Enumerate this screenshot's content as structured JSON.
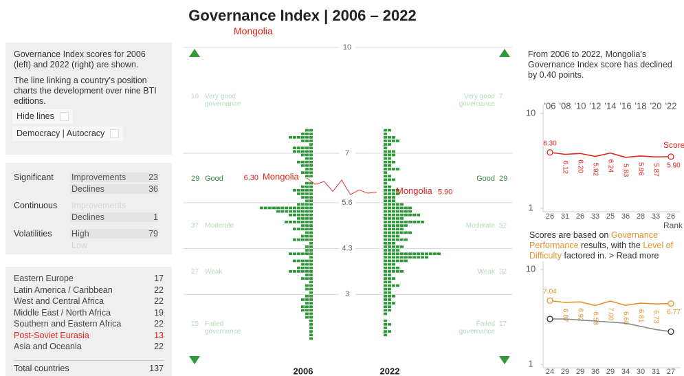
{
  "header": {
    "title": "Governance Index | 2006 – 2022",
    "subtitle": "Mongolia"
  },
  "info_panel": {
    "text1": "Governance Index scores for 2006 (left) and 2022 (right) are shown.",
    "text2": "The line linking a country’s position charts the development over nine BTI editions.",
    "buttons": [
      "Hide lines",
      "Democracy | Autocracy"
    ]
  },
  "trends_panel": [
    {
      "label": "Significant",
      "rows": [
        {
          "name": "Improvements",
          "value": 23
        },
        {
          "name": "Declines",
          "value": 36
        }
      ]
    },
    {
      "label": "Continuous",
      "rows": [
        {
          "name": "Improvements"
        },
        {
          "name": "Declines",
          "value": 1
        }
      ]
    },
    {
      "label": "Volatilities",
      "rows": [
        {
          "name": "High",
          "value": 79
        },
        {
          "name": "Low"
        }
      ]
    }
  ],
  "regions_panel": {
    "regions": [
      {
        "name": "Eastern Europe",
        "count": 17
      },
      {
        "name": "Latin America / Caribbean",
        "count": 22
      },
      {
        "name": "West and Central Africa",
        "count": 22
      },
      {
        "name": "Middle East / North Africa",
        "count": 19
      },
      {
        "name": "Southern and Eastern Africa",
        "count": 22
      },
      {
        "name": "Post-Soviet Eurasia",
        "count": 13
      },
      {
        "name": "Asia and Oceania",
        "count": 22
      }
    ],
    "total": {
      "name": "Total countries",
      "count": 137
    }
  },
  "center": {
    "ylim": [
      1,
      10
    ],
    "yticks": [
      10,
      7,
      5.6,
      4.3,
      3
    ],
    "color": "#2f9a3a",
    "bins": [
      7.7,
      7.6,
      7.5,
      7.4,
      7.3,
      7.2,
      7.1,
      7.0,
      6.9,
      6.8,
      6.7,
      6.6,
      6.5,
      6.4,
      6.3,
      6.2,
      6.1,
      6.0,
      5.9,
      5.8,
      5.7,
      5.6,
      5.5,
      5.4,
      5.3,
      5.2,
      5.1,
      5.0,
      4.9,
      4.8,
      4.7,
      4.6,
      4.5,
      4.4,
      4.3,
      4.2,
      4.1,
      4.0,
      3.9,
      3.8,
      3.7,
      3.6,
      3.5,
      3.4,
      3.3,
      3.2,
      3.1,
      3.0,
      2.9,
      2.8,
      2.7,
      2.6,
      2.5,
      2.4,
      2.3,
      2.2,
      2.1,
      2.0,
      1.9,
      1.8,
      1.7,
      1.6,
      1.5,
      1.4,
      1.3,
      1.2
    ],
    "hist_2006": {
      "year": "2006",
      "counts": [
        2,
        3,
        6,
        3,
        1,
        5,
        5,
        3,
        2,
        4,
        3,
        2,
        3,
        2,
        0,
        2,
        3,
        5,
        4,
        3,
        2,
        4,
        13,
        9,
        6,
        4,
        7,
        3,
        5,
        2,
        3,
        5,
        1,
        2,
        2,
        6,
        1,
        5,
        3,
        4,
        6,
        2,
        3,
        1,
        2,
        2,
        1,
        2,
        3,
        2,
        3,
        3,
        2,
        2,
        1,
        1,
        1,
        1,
        1,
        1,
        0,
        0,
        0,
        0,
        0
      ]
    },
    "hist_2022": {
      "year": "2022",
      "counts": [
        2,
        1,
        3,
        4,
        2,
        1,
        3,
        3,
        2,
        3,
        2,
        4,
        1,
        2,
        3,
        1,
        2,
        4,
        4,
        3,
        3,
        5,
        7,
        7,
        9,
        5,
        10,
        6,
        5,
        7,
        4,
        6,
        3,
        5,
        4,
        14,
        11,
        6,
        3,
        4,
        5,
        2,
        3,
        2,
        4,
        2,
        2,
        3,
        2,
        3,
        2,
        2,
        1,
        0,
        1,
        2,
        1,
        2,
        1,
        0,
        0,
        0,
        0,
        0,
        0
      ]
    },
    "categories": [
      {
        "name": "Very good governance",
        "count_2006": 10,
        "count_2022": 7
      },
      {
        "name": "Good",
        "count_2006": 29,
        "count_2022": 29
      },
      {
        "name": "Moderate",
        "count_2006": 37,
        "count_2022": 52
      },
      {
        "name": "Weak",
        "count_2006": 27,
        "count_2022": 32
      },
      {
        "name": "Failed governance",
        "count_2006": 15,
        "count_2022": 17
      }
    ],
    "country": {
      "name": "Mongolia",
      "color": "#e3221c"
    }
  },
  "right_panel": {
    "summary": "From 2006 to 2022, Mongolia’s Governance Index score has declined by 0.40 points.",
    "chart_score": {
      "type": "line",
      "years": [
        "'06",
        "'08",
        "'10",
        "'12",
        "'14",
        "'16",
        "'18",
        "'20",
        "'22"
      ],
      "ylim": [
        1,
        10
      ],
      "yticks": [
        10,
        1
      ],
      "series": [
        {
          "name": "Score",
          "color": "#e3221c",
          "values": [
            6.3,
            6.12,
            6.2,
            5.92,
            6.24,
            5.83,
            5.96,
            5.87,
            5.9
          ],
          "value_labels": [
            "6.30",
            "6.12",
            "6.20",
            "5.92",
            "6.24",
            "5.83",
            "5.96",
            "5.87",
            "5.90"
          ]
        }
      ],
      "ranks": [
        26,
        31,
        26,
        33,
        25,
        36,
        28,
        33,
        26
      ],
      "rank_label": "Rank"
    },
    "note_parts": [
      "Scores are based on ",
      "Governance Performance",
      " results, with the ",
      "Level of Difficulty",
      " factored in. > Read more"
    ],
    "chart_gp": {
      "type": "line",
      "ylim": [
        1,
        10
      ],
      "yticks": [
        10,
        1
      ],
      "series": [
        {
          "color": "#e8912a",
          "values": [
            7.04,
            6.87,
            6.92,
            6.58,
            7.0,
            6.6,
            6.81,
            6.73,
            6.77
          ],
          "value_labels": [
            "7.04",
            "6.87",
            "6.92",
            "6.58",
            "7.00",
            "6.60",
            "6.81",
            "6.73",
            "6.77"
          ]
        },
        {
          "color": "#8a8a8a",
          "values": [
            5.3,
            5.3,
            5.2,
            5.1,
            5.0,
            4.9,
            4.6,
            4.3,
            4.1
          ]
        }
      ],
      "ranks": [
        24,
        29,
        29,
        36,
        29,
        34,
        30,
        31,
        27
      ]
    }
  }
}
